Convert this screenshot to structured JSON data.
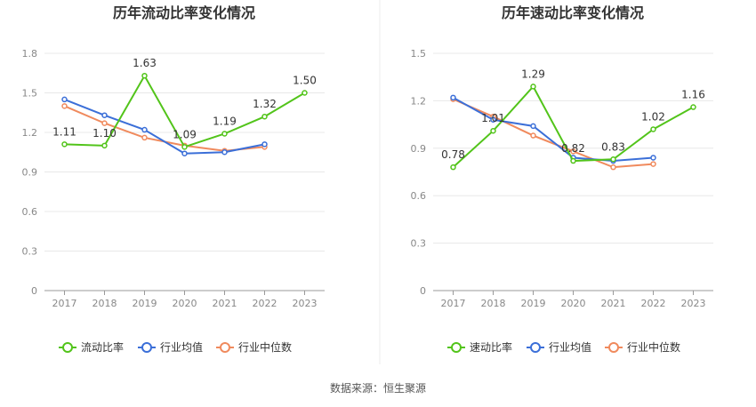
{
  "footer": {
    "source": "数据来源：恒生聚源"
  },
  "colors": {
    "company": "#52c41a",
    "industry_avg": "#3b6fd8",
    "industry_median": "#f08a5d"
  },
  "chart_data": [
    {
      "type": "line",
      "title": "历年流动比率变化情况",
      "categories": [
        "2017",
        "2018",
        "2019",
        "2020",
        "2021",
        "2022",
        "2023"
      ],
      "ylim": [
        0,
        1.8
      ],
      "yticks": [
        "0",
        "0.3",
        "0.6",
        "0.9",
        "1.2",
        "1.5",
        "1.8"
      ],
      "grid": true,
      "legend_position": "bottom",
      "series": [
        {
          "name": "流动比率",
          "values": [
            1.11,
            1.1,
            1.63,
            1.09,
            1.19,
            1.32,
            1.5
          ],
          "labels": [
            "1.11",
            "1.10",
            "1.63",
            "1.09",
            "1.19",
            "1.32",
            "1.50"
          ]
        },
        {
          "name": "行业均值",
          "values": [
            1.45,
            1.33,
            1.22,
            1.04,
            1.05,
            1.11,
            null
          ]
        },
        {
          "name": "行业中位数",
          "values": [
            1.4,
            1.27,
            1.16,
            1.1,
            1.06,
            1.09,
            null
          ]
        }
      ]
    },
    {
      "type": "line",
      "title": "历年速动比率变化情况",
      "categories": [
        "2017",
        "2018",
        "2019",
        "2020",
        "2021",
        "2022",
        "2023"
      ],
      "ylim": [
        0,
        1.5
      ],
      "yticks": [
        "0",
        "0.3",
        "0.6",
        "0.9",
        "1.2",
        "1.5"
      ],
      "grid": true,
      "legend_position": "bottom",
      "series": [
        {
          "name": "速动比率",
          "values": [
            0.78,
            1.01,
            1.29,
            0.82,
            0.83,
            1.02,
            1.16
          ],
          "labels": [
            "0.78",
            "1.01",
            "1.29",
            "0.82",
            "0.83",
            "1.02",
            "1.16"
          ]
        },
        {
          "name": "行业均值",
          "values": [
            1.22,
            1.08,
            1.04,
            0.84,
            0.82,
            0.84,
            null
          ]
        },
        {
          "name": "行业中位数",
          "values": [
            1.21,
            1.1,
            0.98,
            0.88,
            0.78,
            0.8,
            null
          ]
        }
      ]
    }
  ]
}
